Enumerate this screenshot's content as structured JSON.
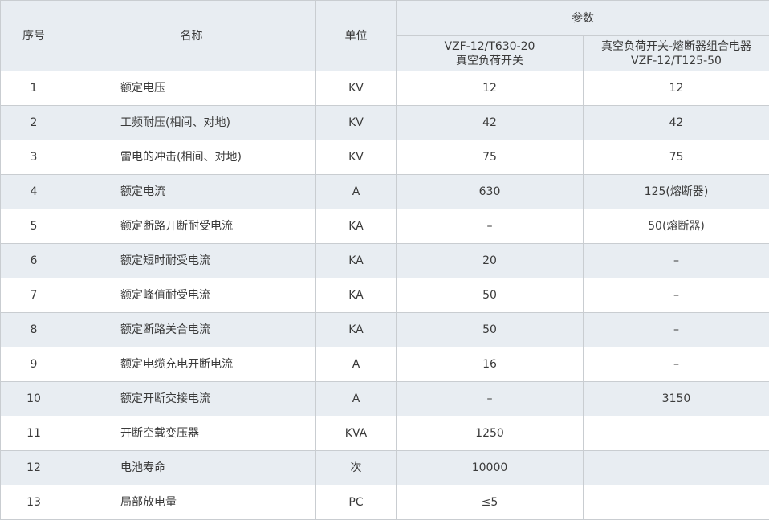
{
  "header": {
    "no": "序号",
    "name": "名称",
    "unit": "单位",
    "params": "参数",
    "col_a_line1": "VZF-12/T630-20",
    "col_a_line2": "真空负荷开关",
    "col_b_line1": "真空负荷开关-熔断器组合电器",
    "col_b_line2": "VZF-12/T125-50"
  },
  "colors": {
    "alt_row": "#e8edf2",
    "border": "#c9cdd1"
  },
  "rows": [
    {
      "no": "1",
      "name": "额定电压",
      "unit": "KV",
      "a": "12",
      "b": "12"
    },
    {
      "no": "2",
      "name": "工频耐压(相间、对地)",
      "unit": "KV",
      "a": "42",
      "b": "42"
    },
    {
      "no": "3",
      "name": "雷电的冲击(相间、对地)",
      "unit": "KV",
      "a": "75",
      "b": "75"
    },
    {
      "no": "4",
      "name": "额定电流",
      "unit": "A",
      "a": "630",
      "b": "125(熔断器)"
    },
    {
      "no": "5",
      "name": "额定断路开断耐受电流",
      "unit": "KA",
      "a": "–",
      "b": "50(熔断器)"
    },
    {
      "no": "6",
      "name": "额定短时耐受电流",
      "unit": "KA",
      "a": "20",
      "b": "–"
    },
    {
      "no": "7",
      "name": "额定峰值耐受电流",
      "unit": "KA",
      "a": "50",
      "b": "–"
    },
    {
      "no": "8",
      "name": "额定断路关合电流",
      "unit": "KA",
      "a": "50",
      "b": "–"
    },
    {
      "no": "9",
      "name": "额定电缆充电开断电流",
      "unit": "A",
      "a": "16",
      "b": "–"
    },
    {
      "no": "10",
      "name": "额定开断交接电流",
      "unit": "A",
      "a": "–",
      "b": "3150"
    },
    {
      "no": "11",
      "name": "开断空载变压器",
      "unit": "KVA",
      "a": "1250",
      "b": ""
    },
    {
      "no": "12",
      "name": "电池寿命",
      "unit": "次",
      "a": "10000",
      "b": ""
    },
    {
      "no": "13",
      "name": "局部放电量",
      "unit": "PC",
      "a": "≤5",
      "b": ""
    }
  ]
}
